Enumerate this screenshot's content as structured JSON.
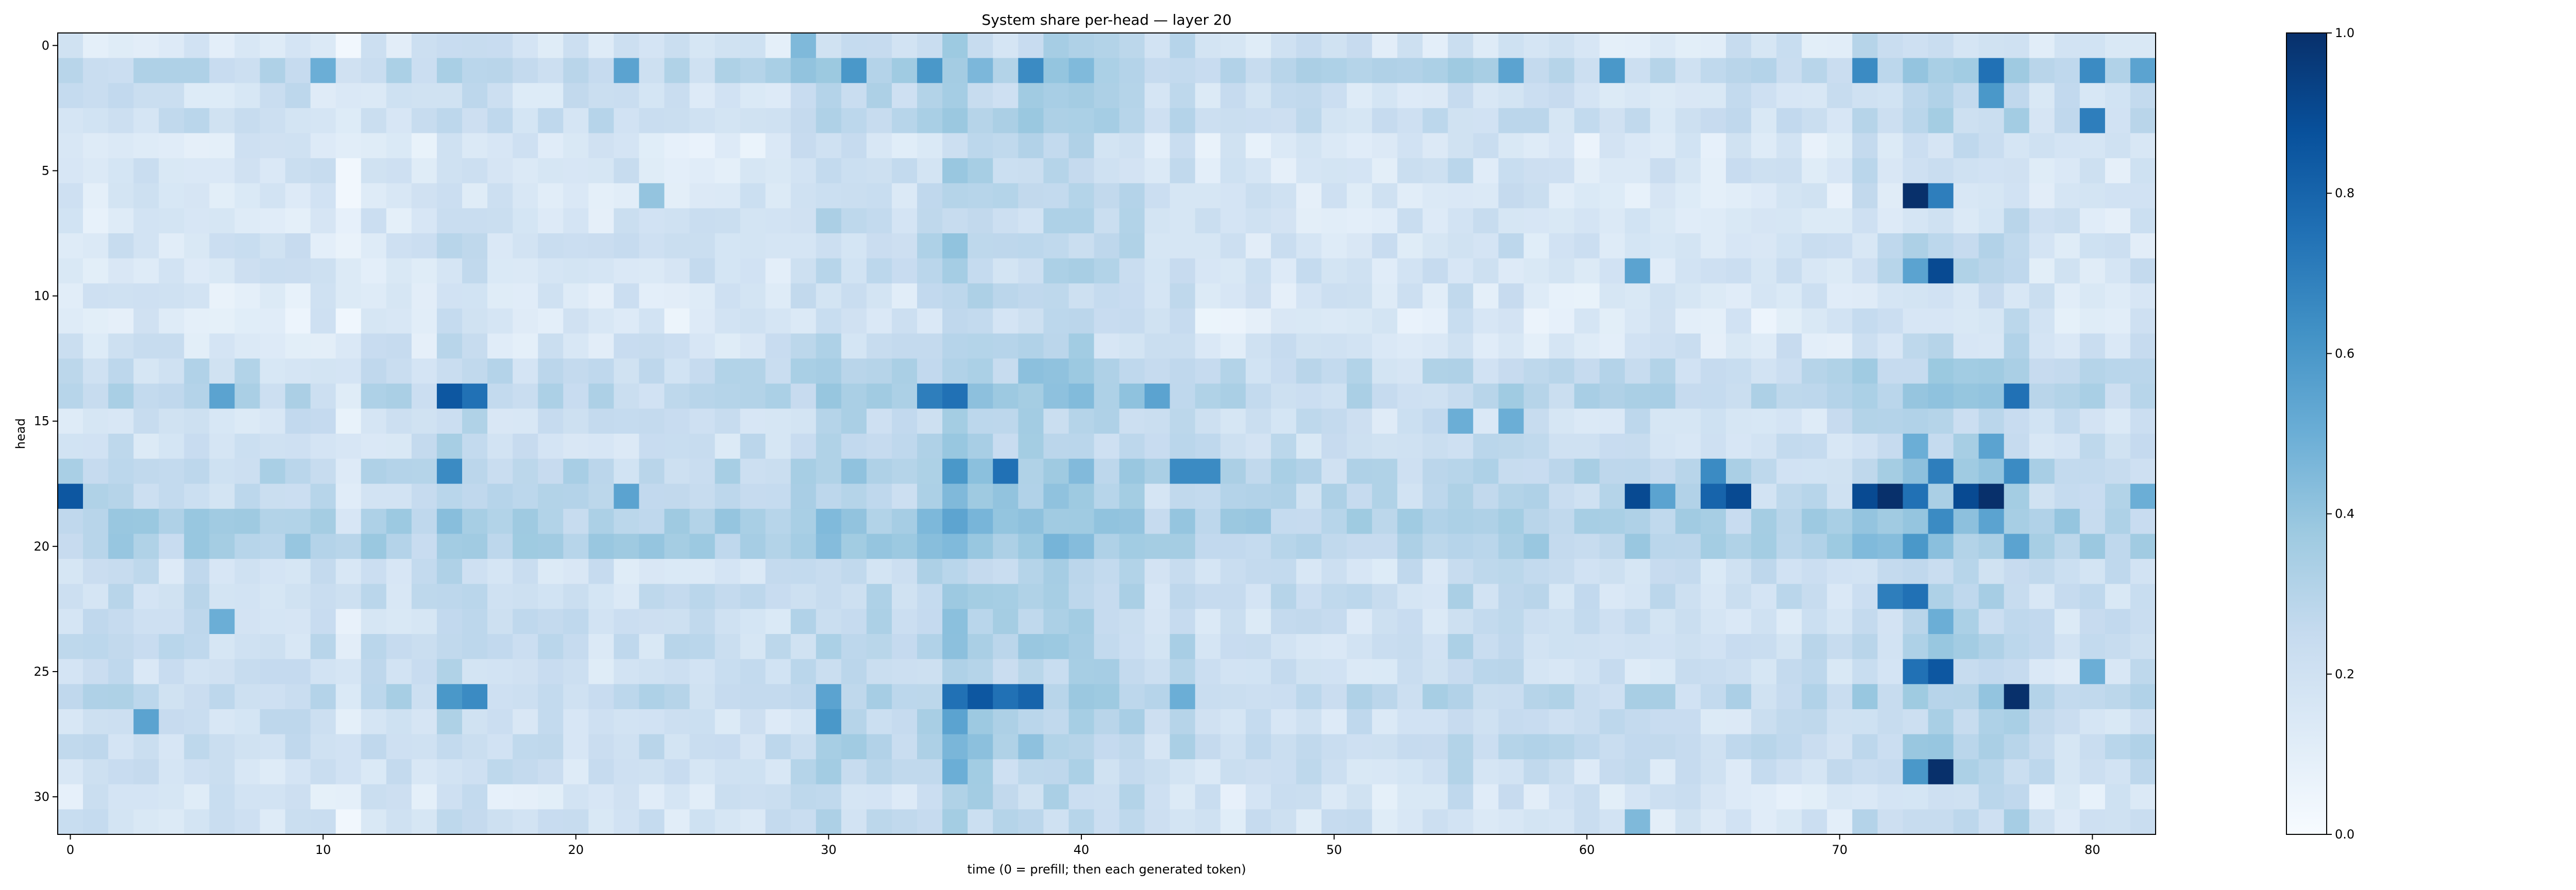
{
  "chart_data": {
    "type": "heatmap",
    "title": "System share per-head — layer 20",
    "xlabel": "time (0 = prefill; then each generated token)",
    "ylabel": "head",
    "x_count": 83,
    "y_count": 32,
    "xlim": [
      -0.5,
      82.5
    ],
    "ylim": [
      31.5,
      -0.5
    ],
    "x_ticks": [
      0,
      10,
      20,
      30,
      40,
      50,
      60,
      70,
      80
    ],
    "y_ticks": [
      0,
      5,
      10,
      15,
      20,
      25,
      30
    ],
    "colormap": "Blues",
    "vmin": 0.0,
    "vmax": 1.0,
    "colorbar_ticks": [
      0.0,
      0.2,
      0.4,
      0.6,
      0.8,
      1.0
    ],
    "colorbar_tick_labels": [
      "0.0",
      "0.2",
      "0.4",
      "0.6",
      "0.8",
      "1.0"
    ],
    "colors": {
      "low": "#f7fbff",
      "mid": "#6baed6",
      "high": "#08306b"
    },
    "row_base": [
      0.17,
      0.28,
      0.2,
      0.22,
      0.14,
      0.17,
      0.15,
      0.16,
      0.18,
      0.18,
      0.15,
      0.13,
      0.17,
      0.24,
      0.27,
      0.2,
      0.21,
      0.27,
      0.25,
      0.32,
      0.32,
      0.2,
      0.22,
      0.2,
      0.22,
      0.2,
      0.27,
      0.2,
      0.24,
      0.2,
      0.16,
      0.18
    ],
    "col_boost": [
      0,
      0,
      0,
      0,
      0,
      0,
      0,
      0,
      0,
      0,
      0,
      0,
      0,
      0,
      0,
      0.06,
      0.04,
      0,
      0,
      0,
      0,
      0,
      0,
      0,
      0,
      0,
      0,
      0,
      0,
      0.05,
      0.1,
      0.07,
      0.06,
      0.03,
      0.08,
      0.15,
      0.12,
      0.08,
      0.1,
      0.1,
      0.12,
      0.07,
      0.08,
      0,
      0.05,
      0,
      0,
      0,
      0,
      0,
      0,
      0,
      0,
      0,
      0,
      0.05,
      0.02,
      0.03,
      0,
      0,
      0,
      0,
      0,
      0,
      0,
      0,
      0,
      0,
      0,
      0,
      0,
      0.05,
      0.04,
      0.08,
      0.1,
      0.06,
      0.06,
      0.08,
      0,
      0,
      0,
      0,
      0
    ],
    "highlights": [
      [
        0,
        29,
        0.45
      ],
      [
        1,
        10,
        0.5
      ],
      [
        1,
        22,
        0.55
      ],
      [
        1,
        31,
        0.6
      ],
      [
        1,
        34,
        0.6
      ],
      [
        1,
        38,
        0.65
      ],
      [
        1,
        57,
        0.55
      ],
      [
        1,
        61,
        0.6
      ],
      [
        1,
        71,
        0.65
      ],
      [
        1,
        76,
        0.75
      ],
      [
        1,
        80,
        0.65
      ],
      [
        1,
        82,
        0.55
      ],
      [
        2,
        76,
        0.6
      ],
      [
        3,
        80,
        0.7
      ],
      [
        6,
        73,
        1.0
      ],
      [
        6,
        74,
        0.7
      ],
      [
        6,
        23,
        0.4
      ],
      [
        9,
        62,
        0.55
      ],
      [
        9,
        73,
        0.55
      ],
      [
        9,
        74,
        0.9
      ],
      [
        14,
        15,
        0.85
      ],
      [
        14,
        16,
        0.75
      ],
      [
        14,
        34,
        0.7
      ],
      [
        14,
        35,
        0.75
      ],
      [
        14,
        77,
        0.75
      ],
      [
        14,
        6,
        0.55
      ],
      [
        14,
        43,
        0.55
      ],
      [
        15,
        55,
        0.5
      ],
      [
        15,
        57,
        0.5
      ],
      [
        17,
        15,
        0.65
      ],
      [
        17,
        35,
        0.6
      ],
      [
        17,
        37,
        0.75
      ],
      [
        17,
        44,
        0.65
      ],
      [
        17,
        45,
        0.65
      ],
      [
        17,
        65,
        0.65
      ],
      [
        17,
        74,
        0.7
      ],
      [
        17,
        77,
        0.65
      ],
      [
        16,
        76,
        0.55
      ],
      [
        16,
        73,
        0.5
      ],
      [
        18,
        0,
        0.85
      ],
      [
        18,
        62,
        0.9
      ],
      [
        18,
        63,
        0.55
      ],
      [
        18,
        65,
        0.8
      ],
      [
        18,
        66,
        0.9
      ],
      [
        18,
        71,
        0.9
      ],
      [
        18,
        72,
        1.0
      ],
      [
        18,
        73,
        0.75
      ],
      [
        18,
        75,
        0.9
      ],
      [
        18,
        76,
        1.0
      ],
      [
        18,
        22,
        0.55
      ],
      [
        18,
        82,
        0.5
      ],
      [
        19,
        74,
        0.65
      ],
      [
        19,
        76,
        0.55
      ],
      [
        20,
        73,
        0.6
      ],
      [
        20,
        77,
        0.55
      ],
      [
        22,
        72,
        0.7
      ],
      [
        22,
        73,
        0.75
      ],
      [
        23,
        6,
        0.5
      ],
      [
        23,
        74,
        0.5
      ],
      [
        25,
        73,
        0.75
      ],
      [
        25,
        74,
        0.85
      ],
      [
        25,
        80,
        0.5
      ],
      [
        26,
        15,
        0.6
      ],
      [
        26,
        16,
        0.65
      ],
      [
        26,
        35,
        0.75
      ],
      [
        26,
        36,
        0.85
      ],
      [
        26,
        37,
        0.75
      ],
      [
        26,
        38,
        0.8
      ],
      [
        26,
        77,
        1.0
      ],
      [
        26,
        30,
        0.55
      ],
      [
        26,
        44,
        0.5
      ],
      [
        27,
        3,
        0.55
      ],
      [
        27,
        30,
        0.6
      ],
      [
        27,
        35,
        0.55
      ],
      [
        29,
        74,
        1.0
      ],
      [
        29,
        73,
        0.6
      ],
      [
        29,
        35,
        0.5
      ],
      [
        31,
        62,
        0.45
      ],
      [
        31,
        77,
        0.35
      ]
    ]
  }
}
